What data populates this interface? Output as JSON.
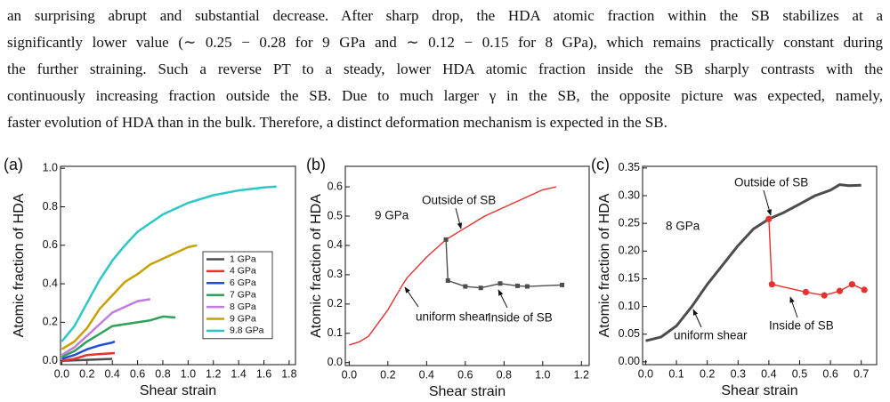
{
  "paragraph": [
    "an surprising abrupt and substantial decrease.  After sharp drop, the HDA atomic fraction within the SB stabilizes at a",
    "significantly lower value (∼ 0.25 − 0.28 for 9 GPa and ∼ 0.12 − 0.15 for 8 GPa), which remains practically constant during",
    "the further straining.  Such a reverse PT to a steady, lower HDA atomic fraction inside the SB sharply contrasts with the",
    "continuously increasing fraction outside the SB. Due to much larger γ in the SB, the opposite picture was expected, namely,",
    "faster evolution of HDA than in the bulk. Therefore, a distinct deformation mechanism is expected in the SB."
  ],
  "chart_data": [
    {
      "type": "line",
      "panel_label": "(a)",
      "xlabel": "Shear strain",
      "ylabel": "Atomic fraction of HDA",
      "xlim": [
        -0.01,
        1.85
      ],
      "ylim": [
        -0.02,
        1.01
      ],
      "legend": "center right",
      "xticks": [
        {
          "value": 0,
          "label": "0.0"
        },
        {
          "value": 0.2,
          "label": "0.2"
        },
        {
          "value": 0.4,
          "label": "0.4"
        },
        {
          "value": 0.6,
          "label": "0.6"
        },
        {
          "value": 0.8,
          "label": "0.8"
        },
        {
          "value": 1,
          "label": "1.0"
        },
        {
          "value": 1.2,
          "label": "1.2"
        },
        {
          "value": 1.4,
          "label": "1.4"
        },
        {
          "value": 1.6,
          "label": "1.6"
        },
        {
          "value": 1.8,
          "label": "1.8"
        }
      ],
      "yticks": [
        {
          "value": 0,
          "label": "0.0"
        },
        {
          "value": 0.2,
          "label": "0.2"
        },
        {
          "value": 0.4,
          "label": "0.4"
        },
        {
          "value": 0.6,
          "label": "0.6"
        },
        {
          "value": 0.8,
          "label": "0.8"
        },
        {
          "value": 1,
          "label": "1.0"
        }
      ],
      "series": [
        {
          "name": "1 GPa",
          "color": "#4d4d4d",
          "x": [
            0,
            0.2,
            0.4
          ],
          "values": [
            0,
            0.005,
            0.01
          ]
        },
        {
          "name": "4 GPa",
          "color": "#e8312f",
          "x": [
            0,
            0.1,
            0.2,
            0.3,
            0.42
          ],
          "values": [
            0,
            0.01,
            0.03,
            0.035,
            0.04
          ]
        },
        {
          "name": "6 GPa",
          "color": "#1f4fd1",
          "x": [
            0,
            0.1,
            0.2,
            0.3,
            0.4,
            0.42
          ],
          "values": [
            0.01,
            0.03,
            0.06,
            0.08,
            0.095,
            0.1
          ]
        },
        {
          "name": "7 GPa",
          "color": "#2fa05a",
          "x": [
            0,
            0.1,
            0.2,
            0.3,
            0.4,
            0.5,
            0.6,
            0.7,
            0.8,
            0.9
          ],
          "values": [
            0.02,
            0.05,
            0.1,
            0.14,
            0.18,
            0.19,
            0.2,
            0.21,
            0.23,
            0.225
          ]
        },
        {
          "name": "8 GPa",
          "color": "#c27be0",
          "x": [
            0,
            0.1,
            0.2,
            0.3,
            0.4,
            0.5,
            0.6,
            0.7
          ],
          "values": [
            0.03,
            0.07,
            0.13,
            0.19,
            0.25,
            0.28,
            0.31,
            0.32
          ]
        },
        {
          "name": "9 GPa",
          "color": "#c8a000",
          "x": [
            0,
            0.1,
            0.2,
            0.3,
            0.4,
            0.5,
            0.6,
            0.7,
            0.8,
            0.9,
            1.0,
            1.07
          ],
          "values": [
            0.06,
            0.1,
            0.17,
            0.27,
            0.34,
            0.41,
            0.45,
            0.5,
            0.53,
            0.56,
            0.59,
            0.6
          ]
        },
        {
          "name": "9.8 GPa",
          "color": "#2cc7c7",
          "x": [
            0,
            0.1,
            0.2,
            0.3,
            0.4,
            0.5,
            0.6,
            0.8,
            1.0,
            1.2,
            1.4,
            1.6,
            1.7
          ],
          "values": [
            0.1,
            0.18,
            0.3,
            0.42,
            0.52,
            0.6,
            0.67,
            0.76,
            0.82,
            0.86,
            0.885,
            0.9,
            0.905
          ]
        }
      ]
    },
    {
      "type": "line",
      "panel_label": "(b)",
      "xlabel": "Shear strain",
      "ylabel": "Atomic fraction of HDA",
      "xlim": [
        -0.02,
        1.24
      ],
      "ylim": [
        -0.01,
        0.67
      ],
      "legend": false,
      "xticks": [
        {
          "value": 0,
          "label": "0.0"
        },
        {
          "value": 0.2,
          "label": "0.2"
        },
        {
          "value": 0.4,
          "label": "0.4"
        },
        {
          "value": 0.6,
          "label": "0.6"
        },
        {
          "value": 0.8,
          "label": "0.8"
        },
        {
          "value": 1,
          "label": "1.0"
        },
        {
          "value": 1.2,
          "label": "1.2"
        }
      ],
      "yticks": [
        {
          "value": 0,
          "label": "0.0"
        },
        0.1,
        0.2,
        0.3,
        0.4,
        0.5,
        0.6
      ],
      "annotations": [
        "9 GPa",
        "uniform shear"
      ],
      "series": [
        {
          "name": "Outside of SB",
          "color": "#e8312f",
          "x": [
            0,
            0.05,
            0.1,
            0.2,
            0.28,
            0.3,
            0.4,
            0.5,
            0.6,
            0.7,
            0.8,
            0.9,
            1.0,
            1.07
          ],
          "values": [
            0.06,
            0.07,
            0.09,
            0.18,
            0.27,
            0.29,
            0.36,
            0.42,
            0.46,
            0.5,
            0.53,
            0.56,
            0.59,
            0.6
          ]
        },
        {
          "name": "Inside of SB",
          "color": "#4d4d4d",
          "marker": "square",
          "x": [
            0.5,
            0.51,
            0.6,
            0.68,
            0.78,
            0.87,
            0.92,
            1.1
          ],
          "values": [
            0.42,
            0.28,
            0.26,
            0.255,
            0.27,
            0.262,
            0.26,
            0.265
          ]
        }
      ]
    },
    {
      "type": "line",
      "panel_label": "(c)",
      "xlabel": "Shear strain",
      "ylabel": "Atomic fraction of HDA",
      "xlim": [
        -0.01,
        0.75
      ],
      "ylim": [
        -0.005,
        0.353
      ],
      "legend": false,
      "xticks": [
        {
          "value": 0,
          "label": "0.0"
        },
        0.1,
        0.2,
        0.3,
        0.4,
        0.5,
        0.6,
        0.7
      ],
      "yticks": [
        {
          "value": 0,
          "label": "0.00"
        },
        0.05,
        {
          "value": 0.1,
          "label": "0.10"
        },
        0.15,
        {
          "value": 0.2,
          "label": "0.20"
        },
        0.25,
        {
          "value": 0.3,
          "label": "0.30"
        },
        0.35
      ],
      "annotations": [
        "8 GPa",
        "uniform shear"
      ],
      "series": [
        {
          "name": "Outside of SB",
          "color": "#4d4d4d",
          "width": 3,
          "x": [
            0,
            0.05,
            0.1,
            0.15,
            0.2,
            0.25,
            0.3,
            0.35,
            0.4,
            0.45,
            0.5,
            0.55,
            0.6,
            0.63,
            0.66,
            0.7
          ],
          "values": [
            0.038,
            0.045,
            0.065,
            0.1,
            0.14,
            0.175,
            0.21,
            0.24,
            0.258,
            0.27,
            0.285,
            0.3,
            0.31,
            0.32,
            0.318,
            0.319
          ]
        },
        {
          "name": "Inside of SB",
          "color": "#e8312f",
          "marker": "circle",
          "x": [
            0.4,
            0.41,
            0.52,
            0.58,
            0.63,
            0.67,
            0.71
          ],
          "values": [
            0.258,
            0.14,
            0.126,
            0.12,
            0.128,
            0.14,
            0.13
          ]
        }
      ]
    }
  ]
}
